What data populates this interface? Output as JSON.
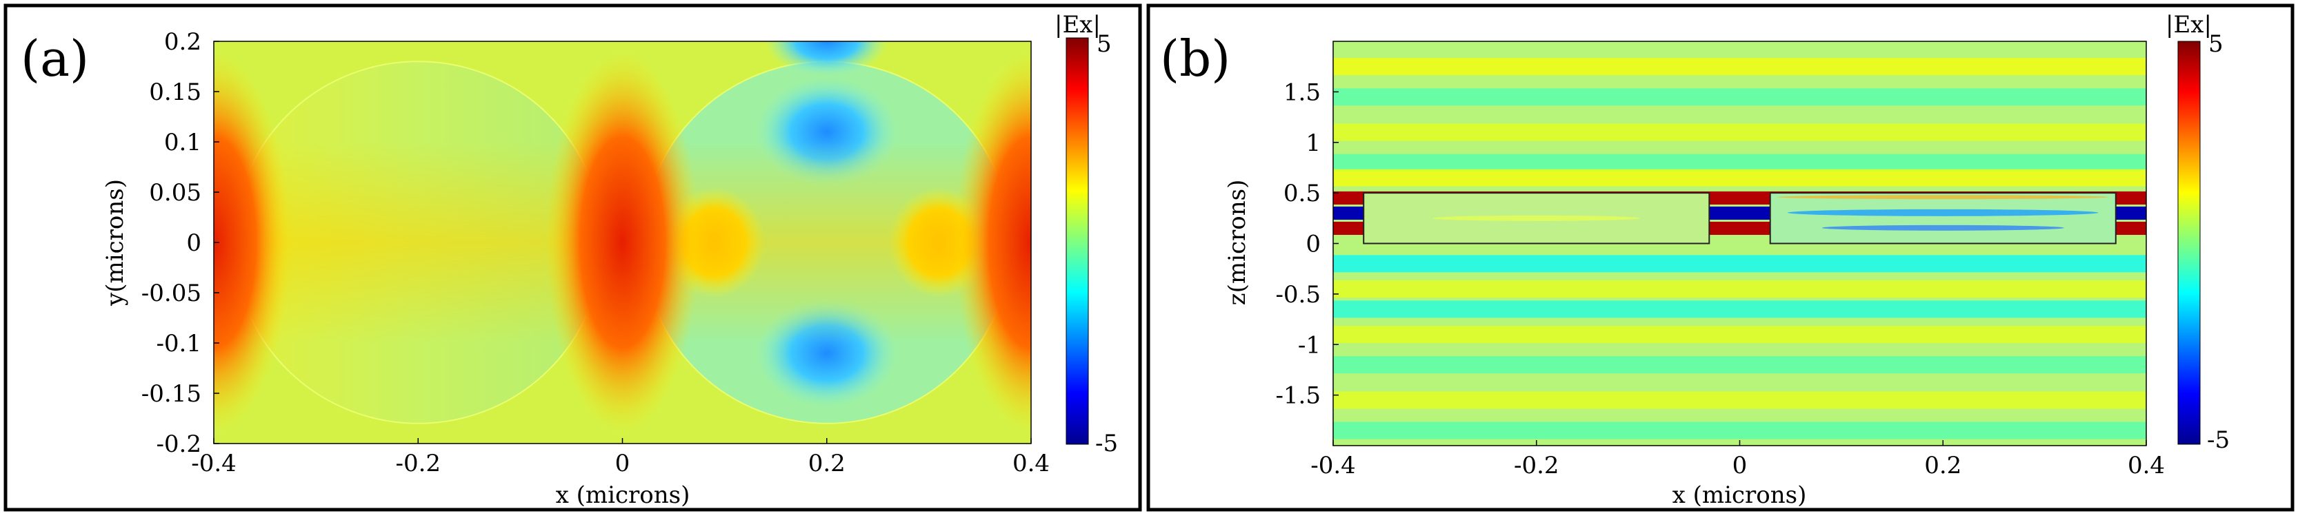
{
  "chart_data": [
    {
      "panel_label": "(a)",
      "type": "heatmap",
      "title": "",
      "xlabel": "x (microns)",
      "ylabel": "y(microns)",
      "xlim": [
        -0.4,
        0.4
      ],
      "ylim": [
        -0.2,
        0.2
      ],
      "xticks": [
        -0.4,
        -0.2,
        0,
        0.2,
        0.4
      ],
      "xtick_labels": [
        "-0.4",
        "-0.2",
        "0",
        "0.2",
        "0.4"
      ],
      "yticks": [
        0.2,
        0.15,
        0.1,
        0.05,
        0,
        -0.05,
        -0.1,
        -0.15,
        -0.2
      ],
      "ytick_labels": [
        "0.2",
        "0.15",
        "0.1",
        "0.05",
        "0",
        "-0.05",
        "-0.1",
        "-0.15",
        "-0.2"
      ],
      "colorbar": {
        "label": "|Ex|",
        "max_label": "5",
        "min_label": "-5",
        "range": [
          -5,
          5
        ],
        "colormap": "jet"
      },
      "structures": [
        {
          "shape": "circle",
          "cx": -0.2,
          "cy": 0,
          "r": 0.18
        },
        {
          "shape": "circle",
          "cx": 0.2,
          "cy": 0,
          "r": 0.18
        }
      ],
      "field_regions": [
        {
          "description": "hotspot",
          "x": -0.4,
          "y": 0,
          "value": 4.6
        },
        {
          "description": "hotspot",
          "x": 0.0,
          "y": 0,
          "value": 4.6
        },
        {
          "description": "hotspot",
          "x": 0.4,
          "y": 0,
          "value": 4.6
        },
        {
          "description": "hotspot",
          "x": 0.09,
          "y": 0,
          "value": 2.0
        },
        {
          "description": "hotspot",
          "x": 0.31,
          "y": 0,
          "value": 2.0
        },
        {
          "description": "minimum",
          "x": 0.2,
          "y": 0.11,
          "value": -2.4
        },
        {
          "description": "minimum",
          "x": 0.2,
          "y": -0.11,
          "value": -2.4
        },
        {
          "description": "minimum",
          "x": 0.2,
          "y": 0.2,
          "value": -1.6
        }
      ]
    },
    {
      "panel_label": "(b)",
      "type": "heatmap",
      "title": "",
      "xlabel": "x (microns)",
      "ylabel": "z(microns)",
      "xlim": [
        -0.4,
        0.4
      ],
      "ylim": [
        -2.0,
        2.0
      ],
      "xticks": [
        -0.4,
        -0.2,
        0,
        0.2,
        0.4
      ],
      "xtick_labels": [
        "-0.4",
        "-0.2",
        "0",
        "0.2",
        "0.4"
      ],
      "yticks": [
        1.5,
        1,
        0.5,
        0,
        -0.5,
        -1,
        -1.5
      ],
      "ytick_labels": [
        "1.5",
        "1",
        "0.5",
        "0",
        "-0.5",
        "-1",
        "-1.5"
      ],
      "colorbar": {
        "label": "|Ex|",
        "max_label": "5",
        "min_label": "-5",
        "range": [
          -5,
          5
        ],
        "colormap": "jet"
      },
      "structures": [
        {
          "shape": "rect",
          "x0": -0.37,
          "x1": -0.03,
          "z0": 0.0,
          "z1": 0.5
        },
        {
          "shape": "rect",
          "x0": 0.03,
          "x1": 0.37,
          "z0": 0.0,
          "z1": 0.5
        }
      ],
      "gap_stripes": [
        {
          "z": 0.45,
          "value": 4.5
        },
        {
          "z": 0.3,
          "value": -4.5
        },
        {
          "z": 0.15,
          "value": 4.5
        }
      ],
      "background_bands": [
        {
          "z": 1.75,
          "value": 1.2
        },
        {
          "z": 1.45,
          "value": -0.5
        },
        {
          "z": 1.1,
          "value": 1.0
        },
        {
          "z": 0.8,
          "value": -0.5
        },
        {
          "z": 0.65,
          "value": 1.2
        },
        {
          "z": -0.2,
          "value": -1.3
        },
        {
          "z": -0.45,
          "value": 1.0
        },
        {
          "z": -0.65,
          "value": -1.0
        },
        {
          "z": -0.9,
          "value": 1.0
        },
        {
          "z": -1.2,
          "value": -0.5
        },
        {
          "z": -1.55,
          "value": 1.0
        },
        {
          "z": -1.85,
          "value": -0.5
        }
      ]
    }
  ]
}
